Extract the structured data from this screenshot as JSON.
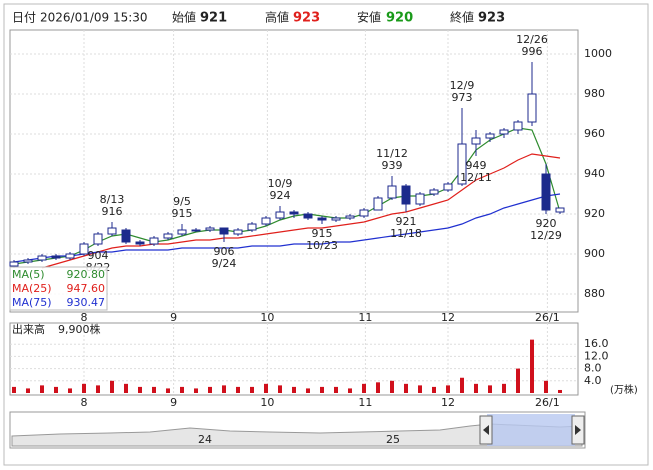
{
  "header": {
    "date_label": "日付",
    "date": "2026/01/09 15:30",
    "open_label": "始値",
    "open": 921,
    "high_label": "高値",
    "high": 923,
    "low_label": "安値",
    "low": 920,
    "close_label": "終値",
    "close": 923
  },
  "chart_data": {
    "type": "candlestick",
    "open": [
      894,
      896,
      897,
      899,
      898,
      900,
      905,
      910,
      912,
      906,
      905,
      908,
      910,
      912,
      912,
      913,
      910,
      912,
      915,
      918,
      921,
      920,
      918,
      917,
      918,
      919,
      922,
      928,
      934,
      925,
      930,
      932,
      935,
      955,
      958,
      960,
      962,
      966,
      940,
      921
    ],
    "high": [
      897,
      898,
      900,
      900,
      901,
      906,
      911,
      916,
      913,
      907,
      909,
      911,
      915,
      913,
      914,
      913,
      913,
      916,
      919,
      924,
      922,
      921,
      919,
      919,
      920,
      923,
      929,
      939,
      935,
      931,
      933,
      936,
      973,
      962,
      961,
      963,
      967,
      996,
      945,
      923
    ],
    "low": [
      893,
      895,
      896,
      897,
      897,
      899,
      904,
      909,
      905,
      904,
      904,
      907,
      909,
      911,
      911,
      906,
      909,
      911,
      914,
      917,
      918,
      917,
      915,
      916,
      917,
      918,
      922,
      927,
      921,
      924,
      929,
      931,
      934,
      949,
      956,
      958,
      960,
      964,
      920,
      920
    ],
    "close": [
      896,
      897,
      899,
      898,
      900,
      905,
      910,
      913,
      906,
      905,
      908,
      910,
      912,
      912,
      913,
      910,
      912,
      915,
      918,
      921,
      920,
      918,
      917,
      918,
      919,
      922,
      928,
      934,
      925,
      930,
      932,
      935,
      955,
      958,
      960,
      962,
      966,
      980,
      922,
      923
    ],
    "up_color": "#ffffff",
    "down_color": "#1c2a8c",
    "ylim": [
      871,
      1012
    ],
    "yticks": [
      880,
      900,
      920,
      940,
      960,
      980,
      1000
    ],
    "xticks": [
      {
        "value": 5,
        "label": "8"
      },
      {
        "value": 11.4,
        "label": "9"
      },
      {
        "value": 18.1,
        "label": "10"
      },
      {
        "value": 25.1,
        "label": "11"
      },
      {
        "value": 31,
        "label": "12"
      },
      {
        "value": 38.1,
        "label": "26/1"
      }
    ],
    "high_labels": [
      {
        "date": "8/13",
        "value": 916
      },
      {
        "date": "9/5",
        "value": 915
      },
      {
        "date": "10/9",
        "value": 924
      },
      {
        "date": "11/12",
        "value": 939
      },
      {
        "date": "12/9",
        "value": 973
      },
      {
        "date": "12/26",
        "value": 996
      }
    ],
    "low_labels": [
      {
        "date": "8/22",
        "value": 904
      },
      {
        "date": "9/24",
        "value": 906
      },
      {
        "date": "10/23",
        "value": 915
      },
      {
        "date": "11/18",
        "value": 921
      },
      {
        "date": "12/11",
        "value": 949
      },
      {
        "date": "12/29",
        "value": 920
      }
    ],
    "ma": [
      {
        "name": "MA(5)",
        "label": "920.80",
        "color": "#2e8b2e",
        "values": [
          895,
          896,
          897,
          898,
          899,
          902,
          906,
          909,
          910,
          908,
          906,
          907,
          909,
          911,
          912,
          912,
          911,
          912,
          914,
          917,
          919,
          920,
          919,
          918,
          918,
          920,
          924,
          928,
          929,
          929,
          930,
          933,
          942,
          952,
          957,
          960,
          963,
          962,
          945,
          921
        ]
      },
      {
        "name": "MA(25)",
        "label": "947.60",
        "color": "#e0201c",
        "values": [
          null,
          null,
          893,
          895,
          897,
          899,
          901,
          903,
          904,
          904,
          905,
          905,
          906,
          907,
          907,
          908,
          908,
          909,
          910,
          911,
          912,
          913,
          913,
          914,
          915,
          916,
          918,
          920,
          921,
          923,
          925,
          927,
          932,
          937,
          940,
          943,
          947,
          950,
          949,
          948
        ]
      },
      {
        "name": "MA(75)",
        "label": "930.47",
        "color": "#2030d0",
        "values": [
          896,
          897,
          898,
          899,
          899,
          900,
          901,
          901,
          902,
          902,
          902,
          902,
          903,
          903,
          903,
          903,
          903,
          904,
          904,
          904,
          905,
          905,
          905,
          906,
          906,
          907,
          908,
          909,
          910,
          911,
          912,
          913,
          915,
          918,
          920,
          923,
          925,
          927,
          929,
          930
        ]
      }
    ],
    "volume": {
      "label": "出来高",
      "value_label": "9,900株",
      "unit": "(万株)",
      "color": "#d0101c",
      "values": [
        2,
        1.5,
        2.5,
        2,
        1.5,
        3,
        2.5,
        4,
        3,
        2,
        2,
        1.5,
        2,
        1.5,
        2,
        2.5,
        2,
        2,
        3,
        2.5,
        2,
        1.5,
        2,
        2,
        1.5,
        3,
        3.5,
        4,
        3,
        2.5,
        2,
        2.5,
        5,
        3,
        2.5,
        3,
        8,
        17.5,
        4,
        0.99
      ],
      "ylim": [
        0,
        22.3
      ],
      "yticks": [
        {
          "value": 4,
          "label": "4.0"
        },
        {
          "value": 8,
          "label": "8.0"
        },
        {
          "value": 12,
          "label": "12.0"
        },
        {
          "value": 16,
          "label": "16.0"
        }
      ]
    },
    "navigator_labels": [
      "24",
      "25"
    ]
  }
}
